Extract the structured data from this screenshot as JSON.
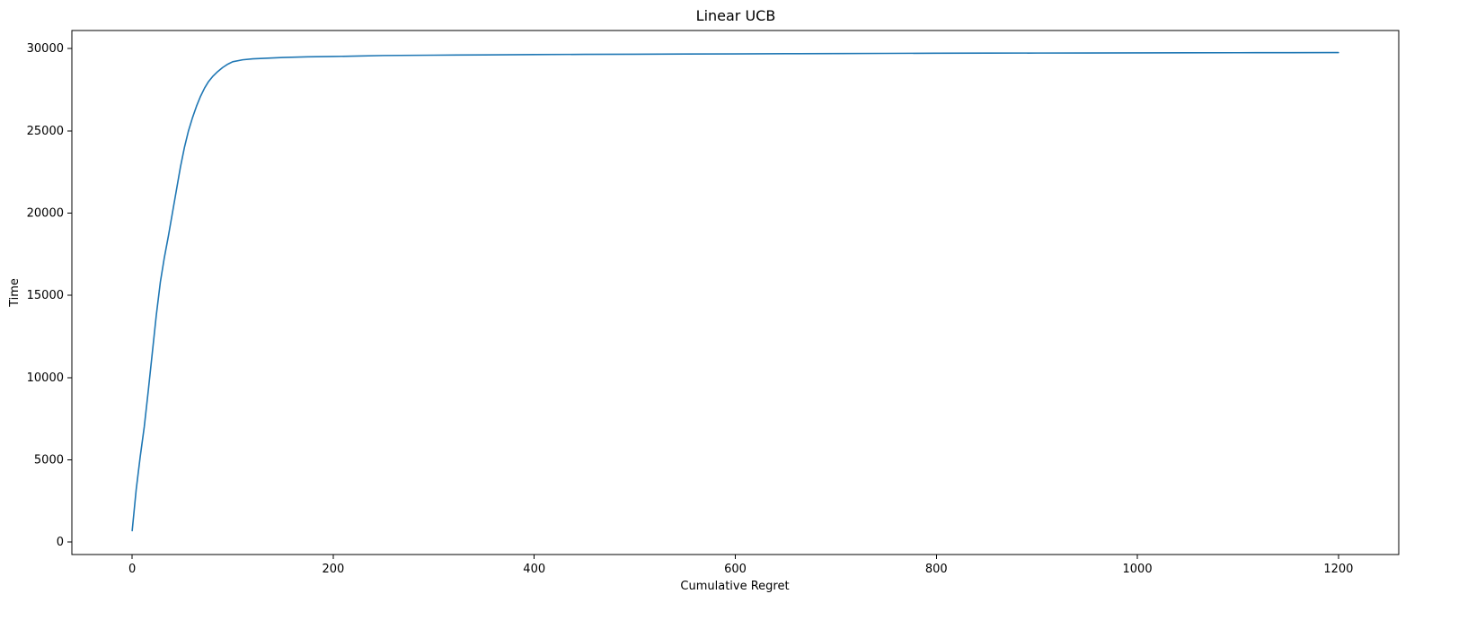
{
  "chart_data": {
    "type": "line",
    "title": "Linear UCB",
    "xlabel": "Cumulative Regret",
    "ylabel": "Time",
    "xlim": [
      -60,
      1260
    ],
    "ylim": [
      -750,
      31100
    ],
    "xticks": [
      0,
      200,
      400,
      600,
      800,
      1000,
      1200
    ],
    "yticks": [
      0,
      5000,
      10000,
      15000,
      20000,
      25000,
      30000
    ],
    "grid": false,
    "series": [
      {
        "color": "#1f77b4",
        "points": [
          [
            0,
            700
          ],
          [
            4,
            3200
          ],
          [
            8,
            5200
          ],
          [
            12,
            7000
          ],
          [
            16,
            9200
          ],
          [
            20,
            11500
          ],
          [
            24,
            13800
          ],
          [
            28,
            15800
          ],
          [
            32,
            17300
          ],
          [
            36,
            18600
          ],
          [
            40,
            20000
          ],
          [
            44,
            21400
          ],
          [
            48,
            22800
          ],
          [
            52,
            24000
          ],
          [
            56,
            25000
          ],
          [
            60,
            25800
          ],
          [
            64,
            26500
          ],
          [
            68,
            27100
          ],
          [
            72,
            27600
          ],
          [
            76,
            28000
          ],
          [
            80,
            28300
          ],
          [
            85,
            28600
          ],
          [
            90,
            28850
          ],
          [
            95,
            29050
          ],
          [
            100,
            29200
          ],
          [
            110,
            29320
          ],
          [
            120,
            29380
          ],
          [
            135,
            29420
          ],
          [
            150,
            29460
          ],
          [
            175,
            29500
          ],
          [
            200,
            29520
          ],
          [
            225,
            29550
          ],
          [
            250,
            29580
          ],
          [
            300,
            29600
          ],
          [
            350,
            29620
          ],
          [
            400,
            29640
          ],
          [
            450,
            29650
          ],
          [
            500,
            29660
          ],
          [
            550,
            29670
          ],
          [
            600,
            29680
          ],
          [
            650,
            29690
          ],
          [
            700,
            29700
          ],
          [
            750,
            29710
          ],
          [
            800,
            29720
          ],
          [
            850,
            29725
          ],
          [
            900,
            29730
          ],
          [
            950,
            29735
          ],
          [
            1000,
            29740
          ],
          [
            1050,
            29745
          ],
          [
            1100,
            29750
          ],
          [
            1150,
            29755
          ],
          [
            1200,
            29760
          ]
        ]
      }
    ]
  }
}
